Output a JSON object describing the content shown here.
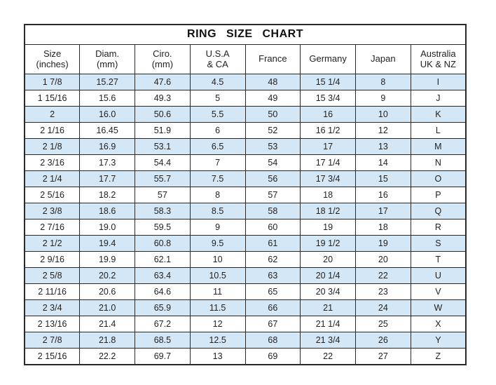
{
  "chart_data": {
    "type": "table",
    "title": "RING SIZE CHART",
    "columns": [
      {
        "name": "size-inches",
        "line1": "Size",
        "line2": "(inches)"
      },
      {
        "name": "diam-mm",
        "line1": "Diam.",
        "line2": "(mm)"
      },
      {
        "name": "ciro-mm",
        "line1": "Ciro.",
        "line2": "(mm)"
      },
      {
        "name": "usa-ca",
        "line1": "U.S.A",
        "line2": "& CA"
      },
      {
        "name": "france",
        "line1": "France",
        "line2": ""
      },
      {
        "name": "germany",
        "line1": "Germany",
        "line2": ""
      },
      {
        "name": "japan",
        "line1": "Japan",
        "line2": ""
      },
      {
        "name": "australia",
        "line1": "Australia",
        "line2": "UK & NZ"
      }
    ],
    "rows": [
      [
        "1 7/8",
        "15.27",
        "47.6",
        "4.5",
        "48",
        "15 1/4",
        "8",
        "I"
      ],
      [
        "1 15/16",
        "15.6",
        "49.3",
        "5",
        "49",
        "15 3/4",
        "9",
        "J"
      ],
      [
        "2",
        "16.0",
        "50.6",
        "5.5",
        "50",
        "16",
        "10",
        "K"
      ],
      [
        "2 1/16",
        "16.45",
        "51.9",
        "6",
        "52",
        "16 1/2",
        "12",
        "L"
      ],
      [
        "2 1/8",
        "16.9",
        "53.1",
        "6.5",
        "53",
        "17",
        "13",
        "M"
      ],
      [
        "2 3/16",
        "17.3",
        "54.4",
        "7",
        "54",
        "17 1/4",
        "14",
        "N"
      ],
      [
        "2 1/4",
        "17.7",
        "55.7",
        "7.5",
        "56",
        "17 3/4",
        "15",
        "O"
      ],
      [
        "2 5/16",
        "18.2",
        "57",
        "8",
        "57",
        "18",
        "16",
        "P"
      ],
      [
        "2 3/8",
        "18.6",
        "58.3",
        "8.5",
        "58",
        "18 1/2",
        "17",
        "Q"
      ],
      [
        "2 7/16",
        "19.0",
        "59.5",
        "9",
        "60",
        "19",
        "18",
        "R"
      ],
      [
        "2 1/2",
        "19.4",
        "60.8",
        "9.5",
        "61",
        "19 1/2",
        "19",
        "S"
      ],
      [
        "2 9/16",
        "19.9",
        "62.1",
        "10",
        "62",
        "20",
        "20",
        "T"
      ],
      [
        "2 5/8",
        "20.2",
        "63.4",
        "10.5",
        "63",
        "20 1/4",
        "22",
        "U"
      ],
      [
        "2 11/16",
        "20.6",
        "64.6",
        "11",
        "65",
        "20 3/4",
        "23",
        "V"
      ],
      [
        "2 3/4",
        "21.0",
        "65.9",
        "11.5",
        "66",
        "21",
        "24",
        "W"
      ],
      [
        "2 13/16",
        "21.4",
        "67.2",
        "12",
        "67",
        "21 1/4",
        "25",
        "X"
      ],
      [
        "2 7/8",
        "21.8",
        "68.5",
        "12.5",
        "68",
        "21 3/4",
        "26",
        "Y"
      ],
      [
        "2 15/16",
        "22.2",
        "69.7",
        "13",
        "69",
        "22",
        "27",
        "Z"
      ]
    ],
    "layout_hints": {
      "alternating_rows": "odd rows (1st, 3rd, ...) shaded blue, even rows white",
      "grid": true
    }
  },
  "colors": {
    "row_alt_blue": "#d4e7f6",
    "border": "#2a2a2a",
    "text": "#222222",
    "background": "#ffffff"
  }
}
